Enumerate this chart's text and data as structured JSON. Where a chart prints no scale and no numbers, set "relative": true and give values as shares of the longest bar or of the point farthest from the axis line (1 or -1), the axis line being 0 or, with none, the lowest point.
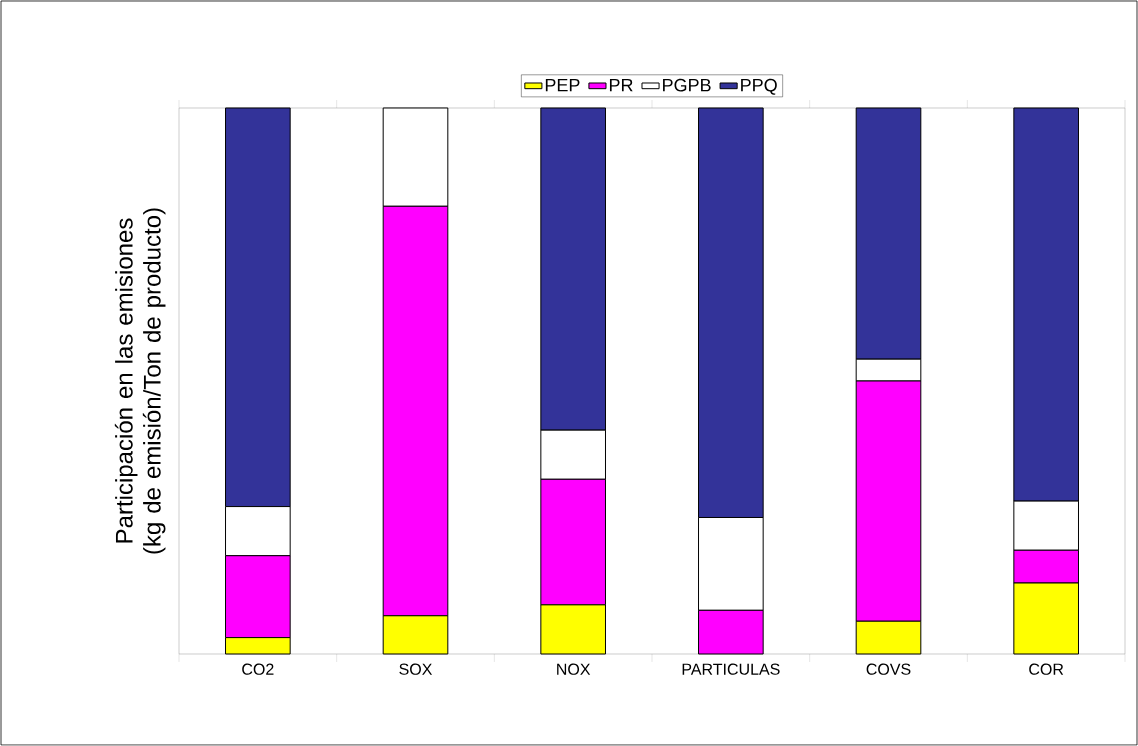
{
  "chart_data": {
    "type": "bar",
    "stacked": true,
    "relative": true,
    "ylabel": "Participación en las emisiones (kg de emisión/Ton de producto)",
    "categories": [
      "CO2",
      "SOX",
      "NOX",
      "PARTICULAS",
      "COVS",
      "COR"
    ],
    "series": [
      {
        "name": "PEP",
        "color": "#ffff00",
        "values": [
          0.03,
          0.07,
          0.09,
          0,
          0.06,
          0.13
        ]
      },
      {
        "name": "PR",
        "color": "#ff00ff",
        "values": [
          0.15,
          0.75,
          0.23,
          0.08,
          0.44,
          0.06
        ]
      },
      {
        "name": "PGPB",
        "color": "#ffffff",
        "values": [
          0.09,
          0.18,
          0.09,
          0.17,
          0.04,
          0.09
        ]
      },
      {
        "name": "PPQ",
        "color": "#333399",
        "values": [
          0.73,
          0,
          0.59,
          0.75,
          0.46,
          0.72
        ]
      }
    ],
    "legend": "top"
  }
}
